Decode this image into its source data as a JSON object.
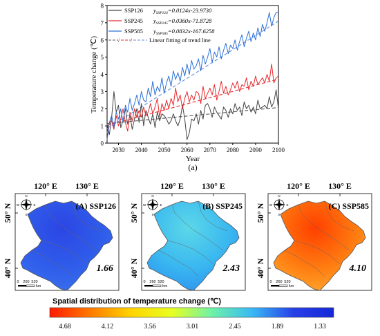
{
  "chart_data": [
    {
      "type": "line",
      "panel_label": "(a)",
      "xlabel": "Year",
      "ylabel": "Temperature change (℃)",
      "xlim": [
        2025,
        2100
      ],
      "ylim": [
        0,
        8
      ],
      "x_ticks": [
        "2030",
        "2040",
        "2050",
        "2060",
        "2070",
        "2080",
        "2090",
        "2100"
      ],
      "y_ticks": [
        "0",
        "1",
        "2",
        "3",
        "4",
        "5",
        "6",
        "7",
        "8"
      ],
      "legend_position": "top-left",
      "fit_legend_label": "Linear fitting of trend line",
      "x": [
        2025,
        2026,
        2027,
        2028,
        2029,
        2030,
        2031,
        2032,
        2033,
        2034,
        2035,
        2036,
        2037,
        2038,
        2039,
        2040,
        2041,
        2042,
        2043,
        2044,
        2045,
        2046,
        2047,
        2048,
        2049,
        2050,
        2051,
        2052,
        2053,
        2054,
        2055,
        2056,
        2057,
        2058,
        2059,
        2060,
        2061,
        2062,
        2063,
        2064,
        2065,
        2066,
        2067,
        2068,
        2069,
        2070,
        2071,
        2072,
        2073,
        2074,
        2075,
        2076,
        2077,
        2078,
        2079,
        2080,
        2081,
        2082,
        2083,
        2084,
        2085,
        2086,
        2087,
        2088,
        2089,
        2090,
        2091,
        2092,
        2093,
        2094,
        2095,
        2096,
        2097,
        2098,
        2099,
        2100
      ],
      "series": [
        {
          "name": "SSP126",
          "equation_lhs": "y",
          "equation_sub": "SSP126",
          "equation_rhs": "=0.0124x-23.9730",
          "color": "#444444",
          "fit_color": "#555555",
          "fit_slope": 0.0124,
          "fit_intercept": -23.973,
          "values": [
            1.1,
            0.5,
            1.5,
            3.0,
            1.8,
            2.2,
            0.9,
            1.3,
            2.0,
            1.1,
            1.6,
            0.8,
            1.4,
            2.0,
            1.2,
            2.3,
            1.0,
            1.9,
            1.5,
            1.1,
            1.7,
            0.9,
            1.8,
            1.3,
            1.7,
            1.6,
            1.4,
            1.1,
            1.3,
            1.7,
            1.3,
            1.0,
            1.4,
            2.2,
            1.4,
            0.2,
            0.6,
            1.4,
            1.3,
            1.7,
            1.1,
            1.9,
            1.4,
            2.2,
            2.3,
            2.0,
            1.5,
            2.1,
            1.8,
            1.6,
            1.4,
            2.1,
            1.9,
            1.5,
            2.0,
            1.7,
            2.3,
            1.9,
            2.1,
            1.6,
            2.4,
            2.0,
            2.2,
            1.8,
            2.1,
            1.7,
            2.5,
            2.0,
            2.1,
            2.2,
            2.0,
            2.7,
            2.1,
            2.4,
            3.1,
            2.0
          ]
        },
        {
          "name": "SSP245",
          "equation_lhs": "y",
          "equation_sub": "SSP245",
          "equation_rhs": "=0.0360x-71.8728",
          "color": "#e8282c",
          "fit_color": "#e8282c",
          "fit_slope": 0.036,
          "fit_intercept": -71.8728,
          "values": [
            0.6,
            1.2,
            1.3,
            0.8,
            1.6,
            1.0,
            1.4,
            2.0,
            1.2,
            0.7,
            1.8,
            1.3,
            2.0,
            1.5,
            1.9,
            1.5,
            2.1,
            1.6,
            1.8,
            2.3,
            1.7,
            2.1,
            2.6,
            1.5,
            2.3,
            1.9,
            2.5,
            2.0,
            2.6,
            2.2,
            3.2,
            2.4,
            2.8,
            2.0,
            2.6,
            3.0,
            2.4,
            2.8,
            2.5,
            3.0,
            2.9,
            2.3,
            3.3,
            2.6,
            2.9,
            3.2,
            2.8,
            3.4,
            2.5,
            3.0,
            3.6,
            2.9,
            3.3,
            2.8,
            3.1,
            3.5,
            3.2,
            3.6,
            3.0,
            3.4,
            3.3,
            3.8,
            3.1,
            3.6,
            3.3,
            3.9,
            3.4,
            3.6,
            3.8,
            3.5,
            4.0,
            3.6,
            4.6,
            3.5,
            3.8,
            3.9
          ]
        },
        {
          "name": "SSP585",
          "equation_lhs": "y",
          "equation_sub": "SSP585",
          "equation_rhs": "=0.0832x-167.6258",
          "color": "#2a6fd6",
          "fit_color": "#5b8fe0",
          "fit_slope": 0.0832,
          "fit_intercept": -167.6258,
          "values": [
            0.2,
            1.2,
            1.6,
            0.9,
            1.8,
            1.4,
            2.0,
            1.2,
            2.2,
            1.8,
            2.6,
            1.9,
            2.3,
            2.8,
            2.2,
            3.0,
            2.5,
            2.4,
            3.2,
            2.7,
            3.6,
            2.8,
            3.3,
            3.0,
            3.8,
            2.9,
            3.5,
            3.9,
            3.3,
            4.2,
            3.7,
            4.1,
            3.6,
            4.4,
            3.9,
            4.6,
            4.0,
            4.8,
            4.3,
            4.5,
            4.9,
            4.2,
            5.1,
            4.6,
            5.0,
            5.5,
            4.7,
            5.3,
            5.0,
            5.6,
            4.9,
            5.4,
            5.8,
            5.2,
            5.7,
            5.5,
            6.0,
            5.4,
            5.9,
            6.3,
            5.6,
            6.1,
            6.5,
            5.9,
            6.4,
            6.0,
            6.7,
            6.2,
            6.9,
            6.5,
            7.0,
            7.6,
            6.8,
            7.3,
            7.6,
            7.6
          ]
        }
      ]
    },
    {
      "type": "heatmap",
      "title": "Spatial distribution of temperature change (℃)",
      "colorbar_ticks": [
        "4.68",
        "4.12",
        "3.56",
        "3.01",
        "2.45",
        "1.89",
        "1.33"
      ],
      "colorbar_colors": [
        "#ff1a00",
        "#ff7a00",
        "#ffd400",
        "#e8ff20",
        "#6ef2a8",
        "#38b8f5",
        "#2840e8",
        "#1428d8"
      ],
      "lon_labels": [
        "120° E",
        "130° E"
      ],
      "lat_labels": [
        "50° N",
        "40° N"
      ],
      "scale_labels": [
        "0",
        "260",
        "520",
        "km"
      ],
      "compass_letters": [
        "N",
        "E",
        "S",
        "W"
      ],
      "panels": [
        {
          "label": "(A) SSP126",
          "mean": "1.66",
          "colors": [
            "#2c46e4",
            "#2f5cea",
            "#3a72ee"
          ]
        },
        {
          "label": "(B) SSP245",
          "mean": "2.43",
          "colors": [
            "#5cd8e8",
            "#3ab8f0",
            "#2d8ff0"
          ]
        },
        {
          "label": "(C) SSP585",
          "mean": "4.10",
          "colors": [
            "#ff4000",
            "#ff7a10",
            "#ffae30"
          ]
        }
      ]
    }
  ]
}
